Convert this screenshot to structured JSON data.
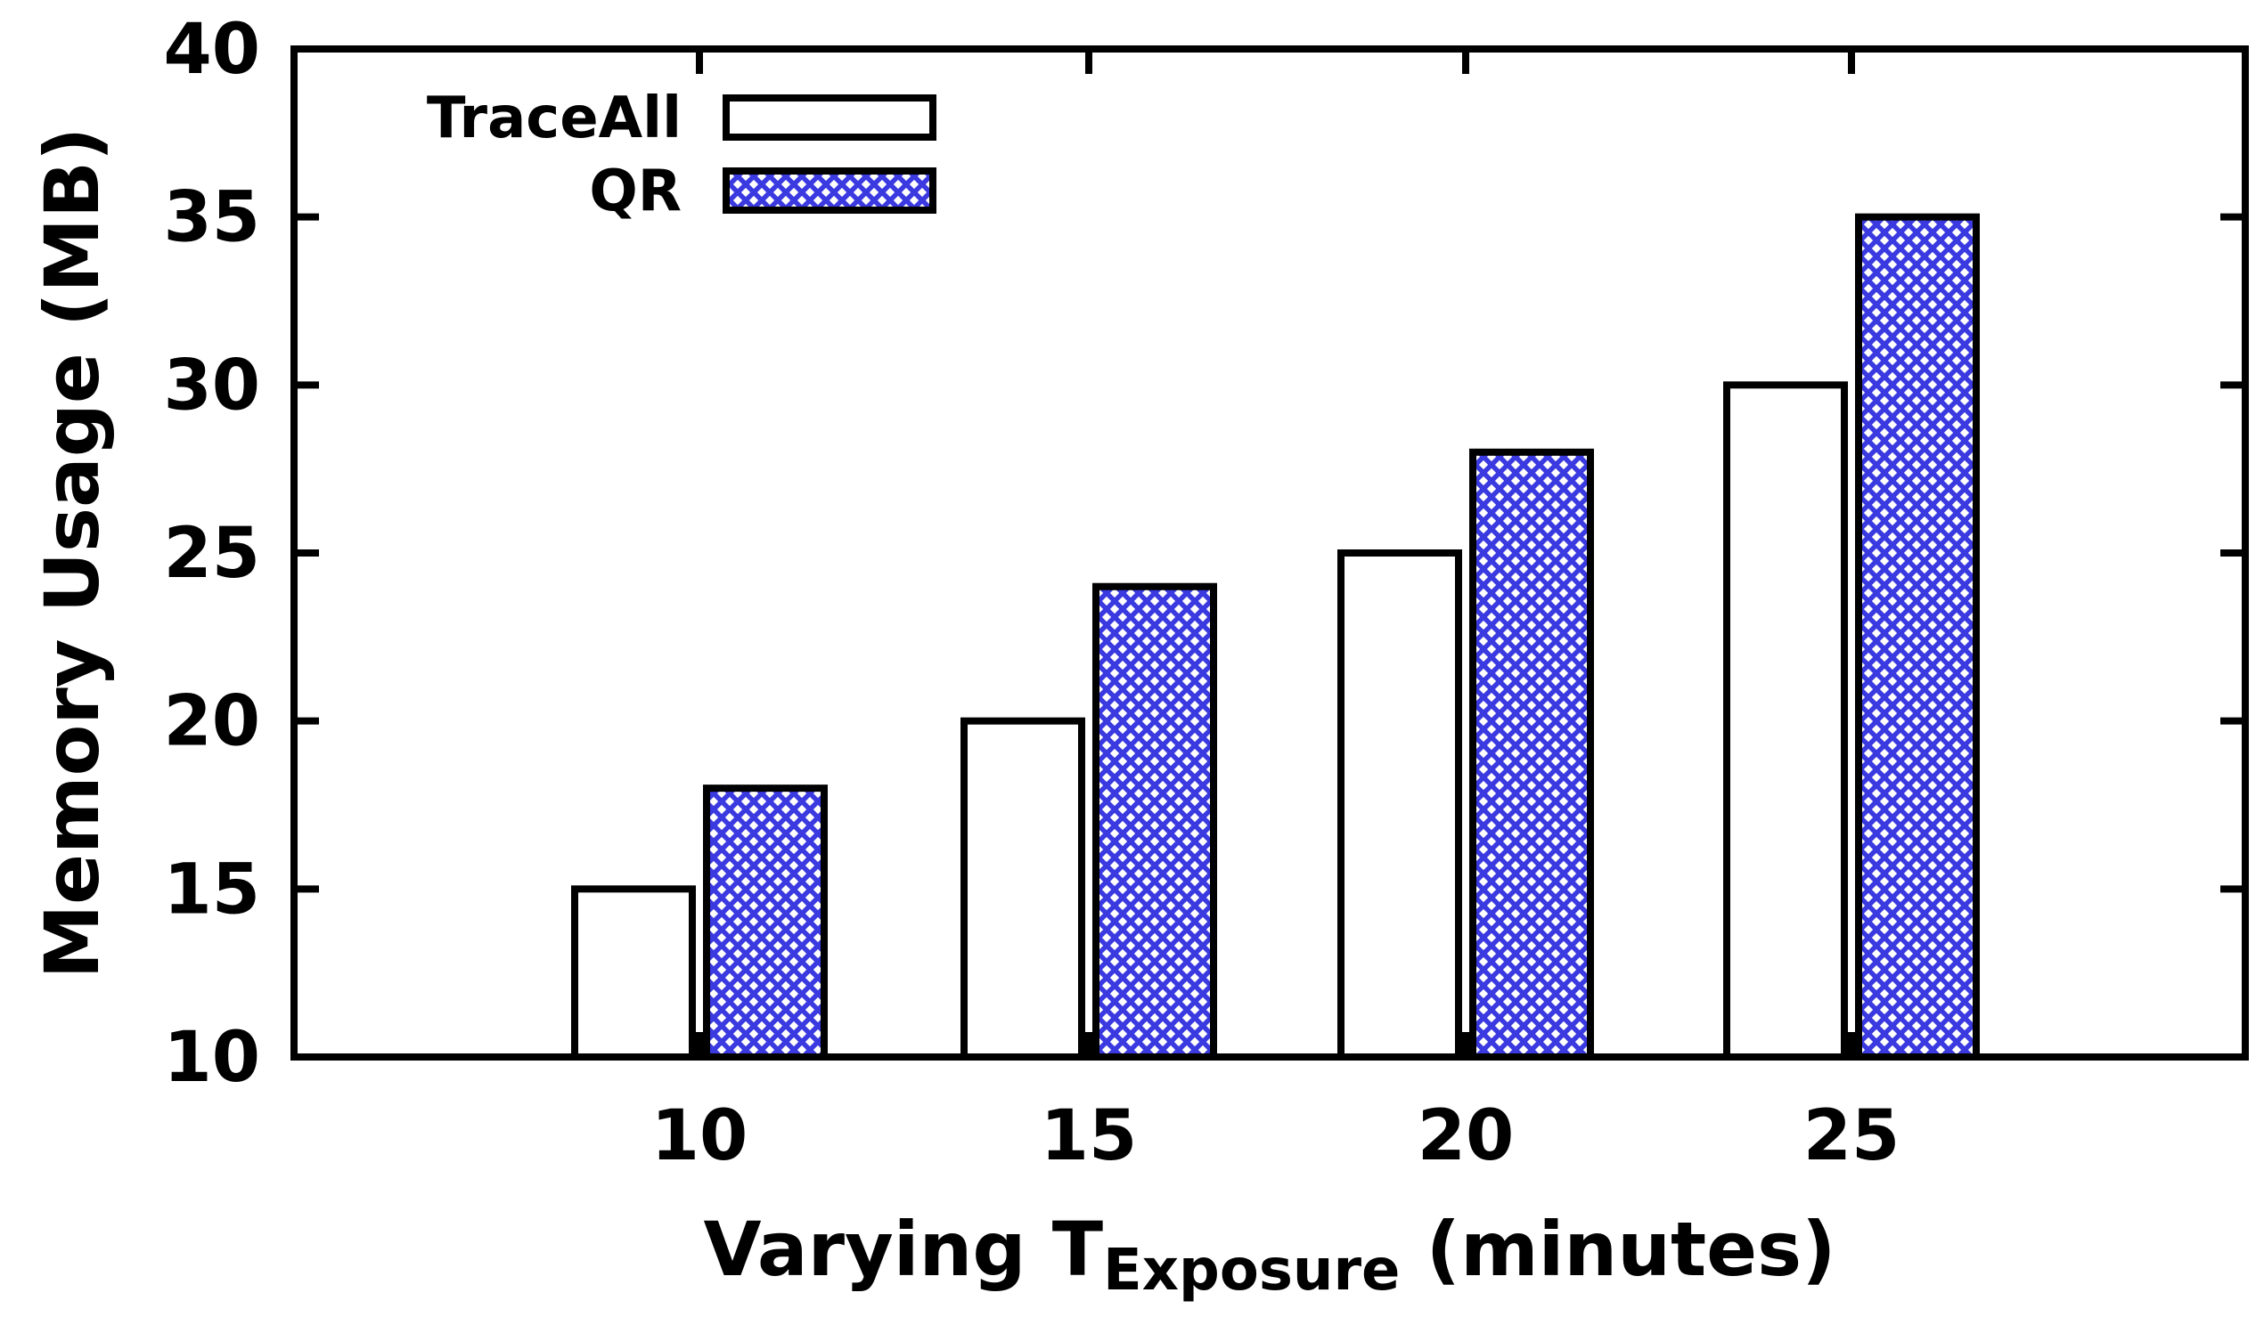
{
  "chart_data": {
    "type": "bar",
    "title": "",
    "categories": [
      "10",
      "15",
      "20",
      "25"
    ],
    "series": [
      {
        "name": "TraceAll",
        "values": [
          15,
          20,
          25,
          30
        ],
        "fill": "#ffffff",
        "pattern": "none"
      },
      {
        "name": "QR",
        "values": [
          18,
          24,
          28,
          35
        ],
        "fill": "#3a3ae0",
        "pattern": "crosshatch"
      }
    ],
    "xlabel_main": "Varying T",
    "xlabel_sub": "Exposure",
    "xlabel_tail": " (minutes)",
    "ylabel": "Memory Usage (MB)",
    "ylim": [
      10,
      40
    ],
    "yticks": [
      10,
      15,
      20,
      25,
      30,
      35,
      40
    ],
    "grid": false,
    "legend_position": "top-left",
    "colors": {
      "axis": "#000000",
      "bar_outline": "#000000",
      "qr_pattern": "#3a3ae0"
    }
  }
}
